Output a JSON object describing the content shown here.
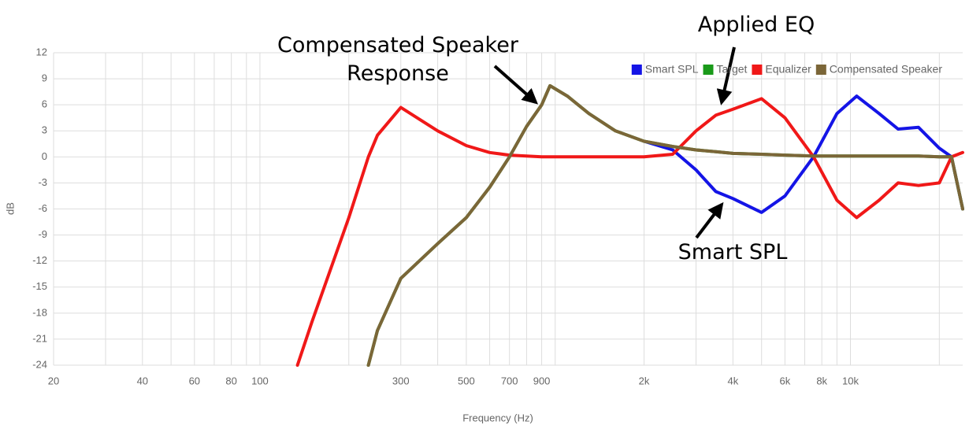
{
  "chart_data": {
    "type": "line",
    "x_label": "Frequency (Hz)",
    "y_label": "dB",
    "log_x": true,
    "grid": true,
    "legend": "top-right",
    "xlim": [
      20,
      24000
    ],
    "ylim": [
      -24,
      12
    ],
    "yticks": [
      -24,
      -21,
      -18,
      -15,
      -12,
      -9,
      -6,
      -3,
      0,
      3,
      6,
      9,
      12
    ],
    "xticks": [
      20,
      40,
      60,
      80,
      100,
      300,
      500,
      700,
      900,
      {
        "value": 2000,
        "label": "2k"
      },
      {
        "value": 4000,
        "label": "4k"
      },
      {
        "value": 6000,
        "label": "6k"
      },
      {
        "value": 8000,
        "label": "8k"
      },
      {
        "value": 10000,
        "label": "10k"
      }
    ],
    "minor_xticks": [
      30,
      50,
      70,
      90,
      200,
      400,
      600,
      800,
      1000,
      3000,
      5000,
      7000,
      9000,
      20000
    ],
    "x": [
      134,
      150,
      200,
      233,
      250,
      300,
      400,
      500,
      600,
      700,
      800,
      900,
      960,
      1100,
      1300,
      1600,
      2000,
      2500,
      3000,
      3500,
      4000,
      5000,
      6000,
      7500,
      9000,
      10500,
      12500,
      14500,
      17000,
      20000,
      22000,
      24000
    ],
    "series": [
      {
        "name": "Smart SPL",
        "color": "#1414e6",
        "values": [
          null,
          null,
          null,
          null,
          null,
          null,
          null,
          null,
          null,
          null,
          null,
          null,
          null,
          null,
          null,
          null,
          1.8,
          0.8,
          -1.5,
          -4,
          -4.8,
          -6.4,
          -4.5,
          0,
          5,
          7,
          5,
          3.2,
          3.4,
          1,
          0,
          -6
        ]
      },
      {
        "name": "Target",
        "color": "#1a9a1a",
        "values": [
          null,
          null,
          null,
          -24,
          -20,
          -14,
          -10,
          -7,
          -3.5,
          0,
          3.5,
          6,
          8.2,
          7,
          5,
          3,
          1.8,
          1.2,
          0.8,
          0.6,
          0.4,
          0.3,
          0.2,
          0.1,
          0.1,
          0.1,
          0.1,
          0.1,
          0.1,
          0,
          0,
          -6
        ]
      },
      {
        "name": "Equalizer",
        "color": "#f01818",
        "values": [
          -24,
          -19,
          -7,
          0,
          2.5,
          5.7,
          3,
          1.3,
          0.5,
          0.2,
          0.1,
          0,
          0,
          0,
          0,
          0,
          0,
          0.3,
          3,
          4.8,
          5.5,
          6.7,
          4.5,
          0,
          -5,
          -7,
          -5,
          -3,
          -3.3,
          -3,
          0,
          0.5
        ]
      },
      {
        "name": "Compensated Speaker",
        "color": "#7b6638",
        "values": [
          null,
          null,
          null,
          -24,
          -20,
          -14,
          -10,
          -7,
          -3.5,
          0,
          3.5,
          6,
          8.2,
          7,
          5,
          3,
          1.8,
          1.2,
          0.8,
          0.6,
          0.4,
          0.3,
          0.2,
          0.1,
          0.1,
          0.1,
          0.1,
          0.1,
          0.1,
          0,
          0,
          -6
        ]
      }
    ],
    "annotations": [
      "Compensated Speaker Response",
      "Applied EQ",
      "Smart SPL"
    ]
  }
}
